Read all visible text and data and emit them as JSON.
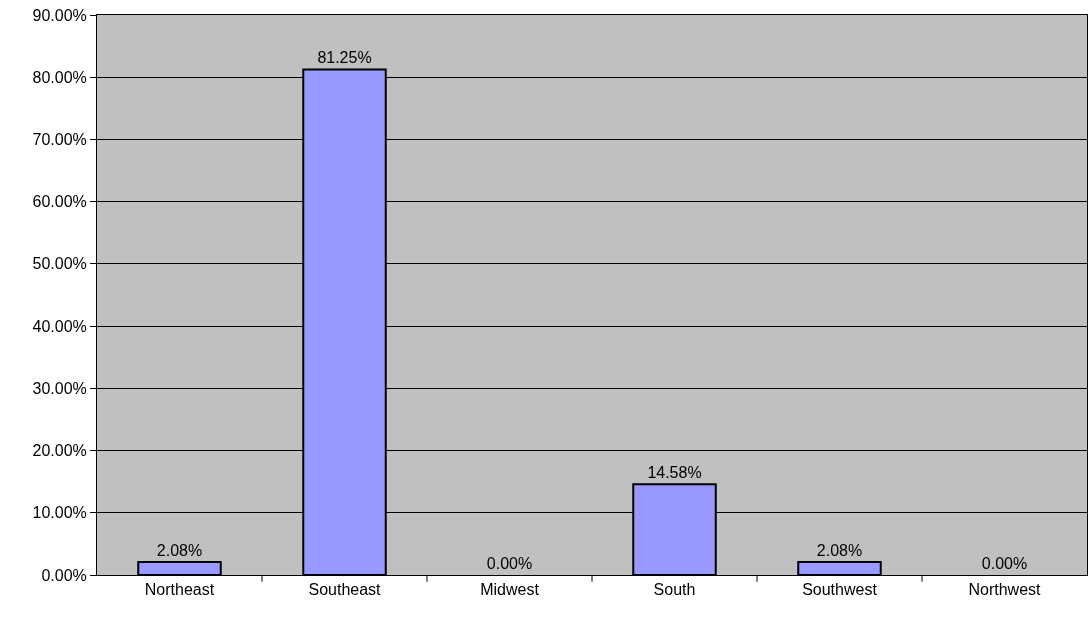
{
  "chart_data": {
    "type": "bar",
    "categories": [
      "Northeast",
      "Southeast",
      "Midwest",
      "South",
      "Southwest",
      "Northwest"
    ],
    "values": [
      2.08,
      81.25,
      0,
      14.58,
      2.08,
      0
    ],
    "value_labels": [
      "2.08%",
      "81.25%",
      "0.00%",
      "14.58%",
      "2.08%",
      "0.00%"
    ],
    "color": "#9999ff",
    "ylim": [
      0,
      90
    ],
    "yticks": [
      {
        "value": 0,
        "label": "0.00%"
      },
      {
        "value": 10,
        "label": "10.00%"
      },
      {
        "value": 20,
        "label": "20.00%"
      },
      {
        "value": 30,
        "label": "30.00%"
      },
      {
        "value": 40,
        "label": "40.00%"
      },
      {
        "value": 50,
        "label": "50.00%"
      },
      {
        "value": 60,
        "label": "60.00%"
      },
      {
        "value": 70,
        "label": "70.00%"
      },
      {
        "value": 80,
        "label": "80.00%"
      },
      {
        "value": 90,
        "label": "90.00%"
      }
    ],
    "grid": "y"
  }
}
